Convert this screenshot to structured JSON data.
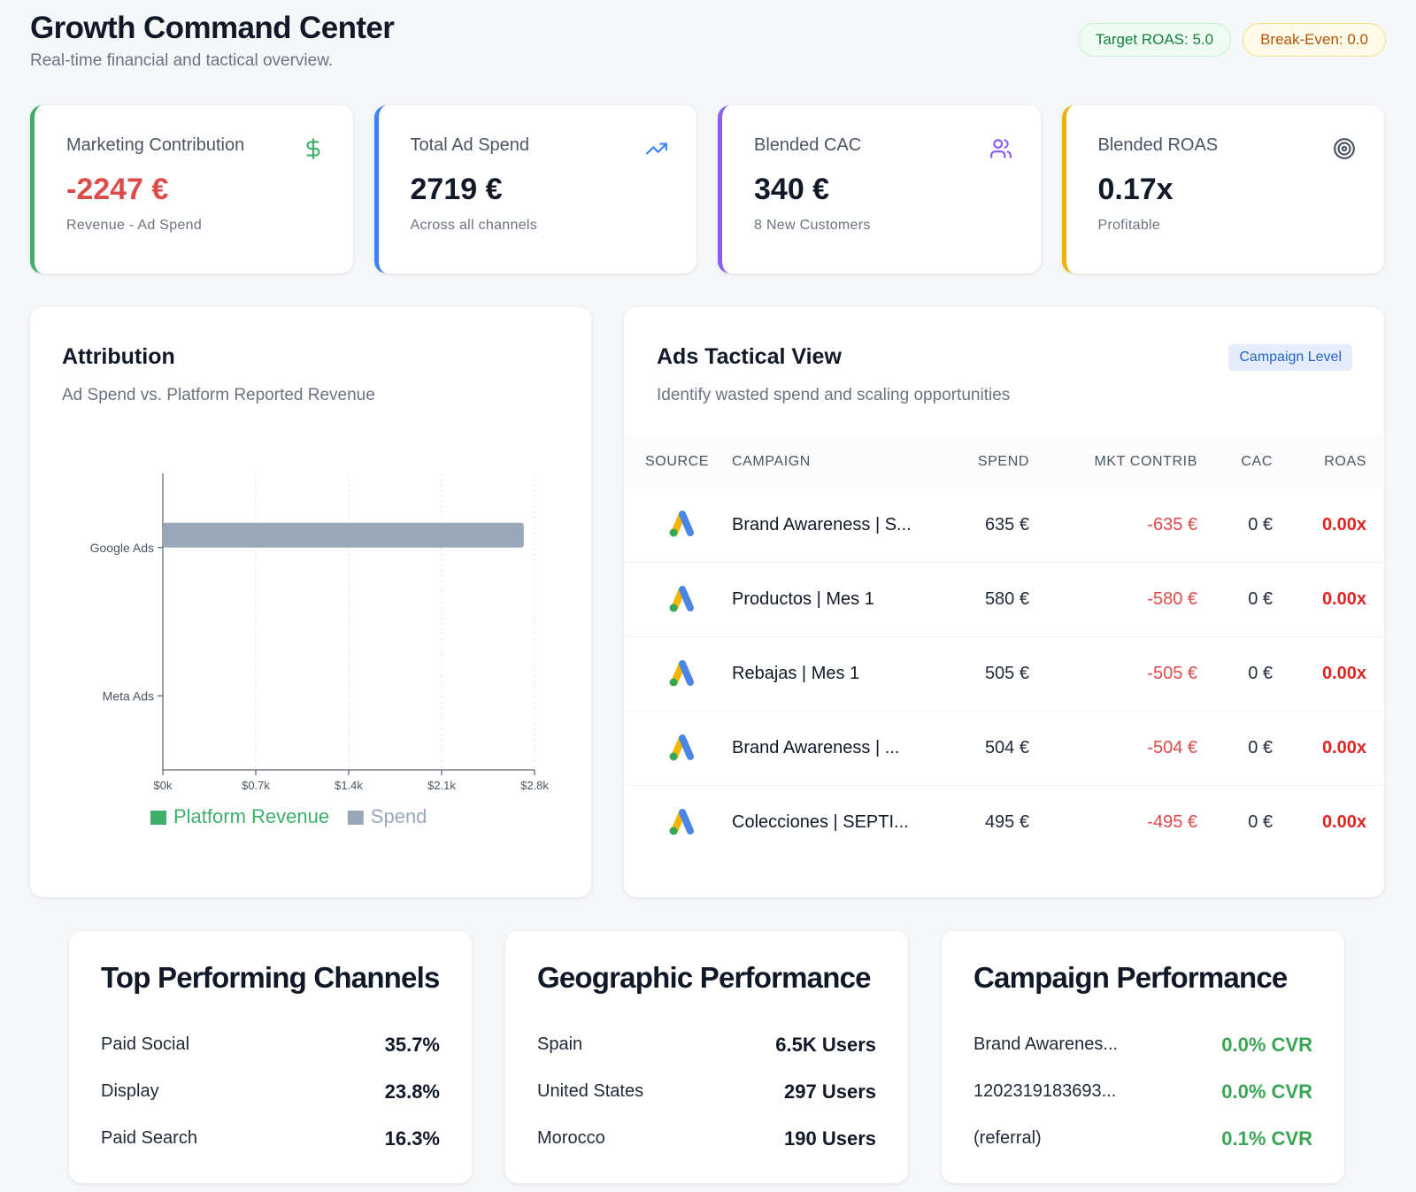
{
  "header": {
    "title": "Growth Command Center",
    "subtitle": "Real-time financial and tactical overview.",
    "pills": {
      "target": "Target ROAS: 5.0",
      "breakeven": "Break-Even: 0.0"
    }
  },
  "kpis": [
    {
      "label": "Marketing Contribution",
      "value": "-2247 €",
      "note": "Revenue - Ad Spend",
      "icon": "dollar-icon",
      "color": "#3fae6b"
    },
    {
      "label": "Total Ad Spend",
      "value": "2719 €",
      "note": "Across all channels",
      "icon": "trending-up-icon",
      "color": "#3b82f6"
    },
    {
      "label": "Blended CAC",
      "value": "340 €",
      "note": "8 New Customers",
      "icon": "users-icon",
      "color": "#8b5cf6"
    },
    {
      "label": "Blended ROAS",
      "value": "0.17x",
      "note": "Profitable",
      "icon": "target-icon",
      "color": "#eab308"
    }
  ],
  "attribution": {
    "title": "Attribution",
    "subtitle": "Ad Spend vs. Platform Reported Revenue"
  },
  "chart_data": {
    "type": "bar",
    "orientation": "horizontal",
    "categories": [
      "Google Ads",
      "Meta Ads"
    ],
    "series": [
      {
        "name": "Platform Revenue",
        "values": [
          0,
          0
        ],
        "color": "#3fae6b"
      },
      {
        "name": "Spend",
        "values": [
          2719,
          0
        ],
        "color": "#9aa7b8"
      }
    ],
    "xticks": [
      "$0k",
      "$0.7k",
      "$1.4k",
      "$2.1k",
      "$2.8k"
    ],
    "xlim": [
      0,
      2800
    ],
    "grid": "vertical dashed",
    "legend": "bottom"
  },
  "ads": {
    "title": "Ads Tactical View",
    "subtitle": "Identify wasted spend and scaling opportunities",
    "badge": "Campaign Level",
    "columns": {
      "source": "SOURCE",
      "campaign": "CAMPAIGN",
      "spend": "SPEND",
      "contrib": "MKT CONTRIB",
      "cac": "CAC",
      "roas": "ROAS"
    },
    "source_icon": "google-ads-icon",
    "rows": [
      {
        "campaign": "Brand Awareness | S...",
        "spend": "635 €",
        "contrib": "-635 €",
        "cac": "0 €",
        "roas": "0.00x"
      },
      {
        "campaign": "Productos | Mes 1",
        "spend": "580 €",
        "contrib": "-580 €",
        "cac": "0 €",
        "roas": "0.00x"
      },
      {
        "campaign": "Rebajas | Mes 1",
        "spend": "505 €",
        "contrib": "-505 €",
        "cac": "0 €",
        "roas": "0.00x"
      },
      {
        "campaign": "Brand Awareness | ...",
        "spend": "504 €",
        "contrib": "-504 €",
        "cac": "0 €",
        "roas": "0.00x"
      },
      {
        "campaign": "Colecciones | SEPTI...",
        "spend": "495 €",
        "contrib": "-495 €",
        "cac": "0 €",
        "roas": "0.00x"
      }
    ]
  },
  "channels": {
    "title": "Top Performing Channels",
    "rows": [
      {
        "name": "Paid Social",
        "value": "35.7%"
      },
      {
        "name": "Display",
        "value": "23.8%"
      },
      {
        "name": "Paid Search",
        "value": "16.3%"
      }
    ]
  },
  "geo": {
    "title": "Geographic Performance",
    "rows": [
      {
        "name": "Spain",
        "value": "6.5K Users"
      },
      {
        "name": "United States",
        "value": "297 Users"
      },
      {
        "name": "Morocco",
        "value": "190 Users"
      }
    ]
  },
  "campaigns": {
    "title": "Campaign Performance",
    "rows": [
      {
        "name": "Brand Awarenes...",
        "value": "0.0% CVR"
      },
      {
        "name": "1202319183693...",
        "value": "0.0% CVR"
      },
      {
        "name": "(referral)",
        "value": "0.1% CVR"
      }
    ]
  }
}
